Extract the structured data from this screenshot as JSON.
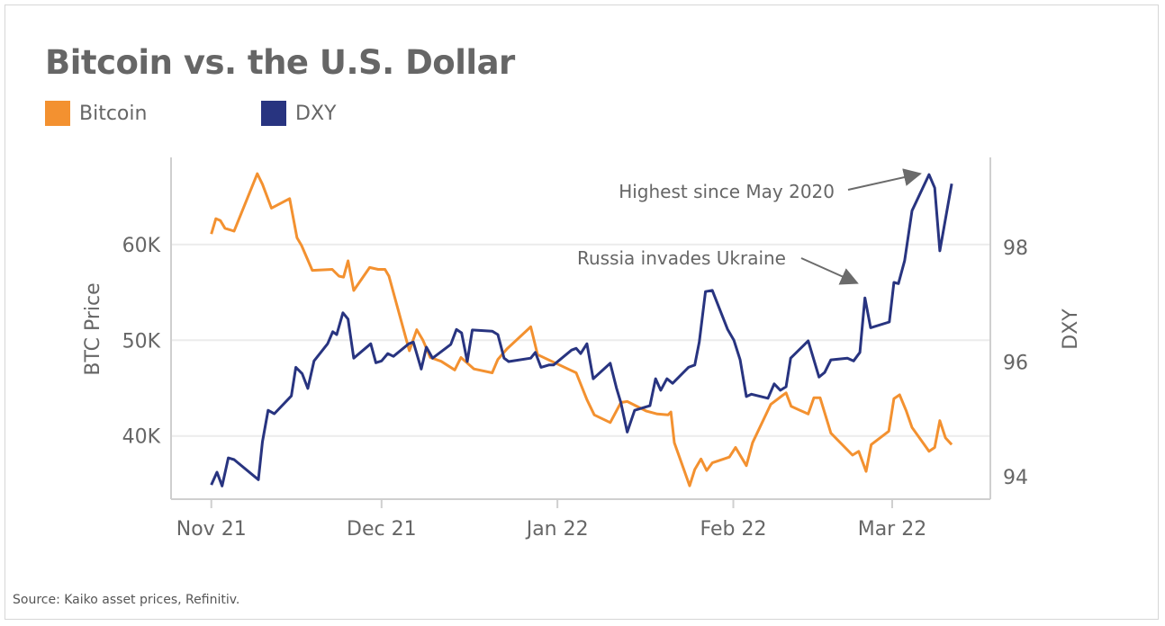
{
  "title": "Bitcoin vs. the U.S. Dollar",
  "source": "Source: Kaiko asset prices, Refinitiv.",
  "chart_data": {
    "type": "line",
    "title": "Bitcoin vs. the U.S. Dollar",
    "x_unit": "days since 2021-11-01",
    "xlim": [
      -7.1,
      137.3
    ],
    "x_ticks": [
      {
        "day": 0,
        "label": "Nov 21"
      },
      {
        "day": 30,
        "label": "Dec 21"
      },
      {
        "day": 61,
        "label": "Jan 22"
      },
      {
        "day": 92,
        "label": "Feb 22"
      },
      {
        "day": 120,
        "label": "Mar 22"
      }
    ],
    "y_left": {
      "label": "BTC Price",
      "unit": "thousand USD",
      "lim": [
        33.4,
        69.1
      ],
      "ticks": [
        {
          "value": 40,
          "label": "40K"
        },
        {
          "value": 50,
          "label": "50K"
        },
        {
          "value": 60,
          "label": "60K"
        }
      ]
    },
    "y_right": {
      "label": "DXY",
      "lim": [
        93.61,
        99.57
      ],
      "ticks": [
        {
          "value": 94,
          "label": "94"
        },
        {
          "value": 96,
          "label": "96"
        },
        {
          "value": 98,
          "label": "98"
        }
      ]
    },
    "grid": true,
    "legend_position": "top-left",
    "series": [
      {
        "name": "Bitcoin",
        "axis": "left",
        "color": "#F39130",
        "points": [
          [
            0,
            61.1
          ],
          [
            0.8,
            62.7
          ],
          [
            1.6,
            62.5
          ],
          [
            2.4,
            61.7
          ],
          [
            4.0,
            61.4
          ],
          [
            8.1,
            67.4
          ],
          [
            9.0,
            66.3
          ],
          [
            10.6,
            63.8
          ],
          [
            13.8,
            64.8
          ],
          [
            15.1,
            60.7
          ],
          [
            15.9,
            59.9
          ],
          [
            17.8,
            57.3
          ],
          [
            21.3,
            57.4
          ],
          [
            22.5,
            56.7
          ],
          [
            23.3,
            56.6
          ],
          [
            24.1,
            58.3
          ],
          [
            25.1,
            55.2
          ],
          [
            27.9,
            57.6
          ],
          [
            29.4,
            57.4
          ],
          [
            30.6,
            57.4
          ],
          [
            31.3,
            56.7
          ],
          [
            34.9,
            48.9
          ],
          [
            36.2,
            51.1
          ],
          [
            37.3,
            50.0
          ],
          [
            38.6,
            48.2
          ],
          [
            40.5,
            47.8
          ],
          [
            42.9,
            46.9
          ],
          [
            44.0,
            48.2
          ],
          [
            46.3,
            47.0
          ],
          [
            49.5,
            46.6
          ],
          [
            50.5,
            48.0
          ],
          [
            52.1,
            49.1
          ],
          [
            56.3,
            51.4
          ],
          [
            57.5,
            48.5
          ],
          [
            64.3,
            46.6
          ],
          [
            66.2,
            43.8
          ],
          [
            67.5,
            42.2
          ],
          [
            70.3,
            41.4
          ],
          [
            72.2,
            43.5
          ],
          [
            73.3,
            43.6
          ],
          [
            76.7,
            42.6
          ],
          [
            78.6,
            42.3
          ],
          [
            80.5,
            42.2
          ],
          [
            81.0,
            42.5
          ],
          [
            81.6,
            39.3
          ],
          [
            84.3,
            34.8
          ],
          [
            85.2,
            36.5
          ],
          [
            86.3,
            37.6
          ],
          [
            87.3,
            36.4
          ],
          [
            88.3,
            37.2
          ],
          [
            91.3,
            37.8
          ],
          [
            92.4,
            38.8
          ],
          [
            94.3,
            36.9
          ],
          [
            95.4,
            39.3
          ],
          [
            98.6,
            43.3
          ],
          [
            100.6,
            44.2
          ],
          [
            101.3,
            44.5
          ],
          [
            102.2,
            43.1
          ],
          [
            105.2,
            42.3
          ],
          [
            106.2,
            44.0
          ],
          [
            107.3,
            44.0
          ],
          [
            109.2,
            40.3
          ],
          [
            113.0,
            38.0
          ],
          [
            114.1,
            38.4
          ],
          [
            115.4,
            36.3
          ],
          [
            116.3,
            39.1
          ],
          [
            119.4,
            40.5
          ],
          [
            120.3,
            43.9
          ],
          [
            121.3,
            44.3
          ],
          [
            122.5,
            42.6
          ],
          [
            123.5,
            40.9
          ],
          [
            126.5,
            38.4
          ],
          [
            127.5,
            38.8
          ],
          [
            128.4,
            41.6
          ],
          [
            129.4,
            39.8
          ],
          [
            130.5,
            39.1
          ]
        ]
      },
      {
        "name": "DXY",
        "axis": "right",
        "color": "#283480",
        "points": [
          [
            0,
            93.86
          ],
          [
            1.0,
            94.08
          ],
          [
            1.9,
            93.84
          ],
          [
            3.0,
            94.33
          ],
          [
            4.0,
            94.3
          ],
          [
            8.3,
            93.95
          ],
          [
            9.0,
            94.61
          ],
          [
            10.0,
            95.16
          ],
          [
            11.1,
            95.1
          ],
          [
            14.1,
            95.41
          ],
          [
            14.9,
            95.91
          ],
          [
            16.0,
            95.8
          ],
          [
            17.0,
            95.54
          ],
          [
            18.1,
            96.02
          ],
          [
            20.5,
            96.32
          ],
          [
            21.4,
            96.53
          ],
          [
            22.1,
            96.48
          ],
          [
            23.2,
            96.86
          ],
          [
            24.1,
            96.75
          ],
          [
            25.1,
            96.07
          ],
          [
            28.1,
            96.32
          ],
          [
            29.0,
            95.99
          ],
          [
            30.0,
            96.02
          ],
          [
            31.1,
            96.15
          ],
          [
            32.1,
            96.1
          ],
          [
            34.8,
            96.32
          ],
          [
            35.6,
            96.35
          ],
          [
            37.0,
            95.88
          ],
          [
            37.9,
            96.26
          ],
          [
            39.0,
            96.07
          ],
          [
            42.2,
            96.31
          ],
          [
            43.2,
            96.57
          ],
          [
            44.1,
            96.51
          ],
          [
            45.1,
            96.01
          ],
          [
            46.0,
            96.56
          ],
          [
            49.5,
            96.54
          ],
          [
            50.5,
            96.48
          ],
          [
            51.6,
            96.07
          ],
          [
            52.4,
            96.01
          ],
          [
            56.3,
            96.07
          ],
          [
            57.1,
            96.17
          ],
          [
            58.1,
            95.91
          ],
          [
            59.5,
            95.95
          ],
          [
            60.3,
            95.95
          ],
          [
            63.5,
            96.21
          ],
          [
            64.3,
            96.24
          ],
          [
            65.1,
            96.15
          ],
          [
            66.2,
            96.32
          ],
          [
            67.3,
            95.71
          ],
          [
            70.3,
            95.98
          ],
          [
            71.4,
            95.55
          ],
          [
            72.2,
            95.29
          ],
          [
            73.3,
            94.78
          ],
          [
            74.6,
            95.16
          ],
          [
            77.3,
            95.24
          ],
          [
            78.3,
            95.71
          ],
          [
            79.2,
            95.51
          ],
          [
            80.3,
            95.71
          ],
          [
            81.3,
            95.63
          ],
          [
            84.1,
            95.91
          ],
          [
            85.2,
            95.95
          ],
          [
            86.0,
            96.35
          ],
          [
            87.1,
            97.23
          ],
          [
            88.3,
            97.25
          ],
          [
            91.0,
            96.57
          ],
          [
            92.1,
            96.38
          ],
          [
            93.2,
            96.04
          ],
          [
            94.3,
            95.4
          ],
          [
            95.2,
            95.44
          ],
          [
            98.1,
            95.37
          ],
          [
            99.2,
            95.62
          ],
          [
            100.3,
            95.51
          ],
          [
            101.3,
            95.57
          ],
          [
            102.1,
            96.07
          ],
          [
            105.2,
            96.37
          ],
          [
            107.1,
            95.74
          ],
          [
            108.1,
            95.82
          ],
          [
            109.2,
            96.04
          ],
          [
            112.1,
            96.07
          ],
          [
            113.2,
            96.02
          ],
          [
            114.3,
            96.17
          ],
          [
            115.2,
            97.12
          ],
          [
            116.2,
            96.6
          ],
          [
            119.5,
            96.7
          ],
          [
            120.3,
            97.39
          ],
          [
            121.1,
            97.37
          ],
          [
            122.2,
            97.77
          ],
          [
            123.5,
            98.64
          ],
          [
            126.5,
            99.27
          ],
          [
            127.5,
            99.04
          ],
          [
            128.4,
            97.94
          ],
          [
            130.5,
            99.11
          ]
        ]
      }
    ],
    "annotations": [
      {
        "text": "Highest since May 2020",
        "target_day": 126.5,
        "target_value": 99.27,
        "axis": "right"
      },
      {
        "text": "Russia invades Ukraine",
        "target_day": 113.5,
        "target_value": 97.3,
        "axis": "right"
      }
    ]
  }
}
